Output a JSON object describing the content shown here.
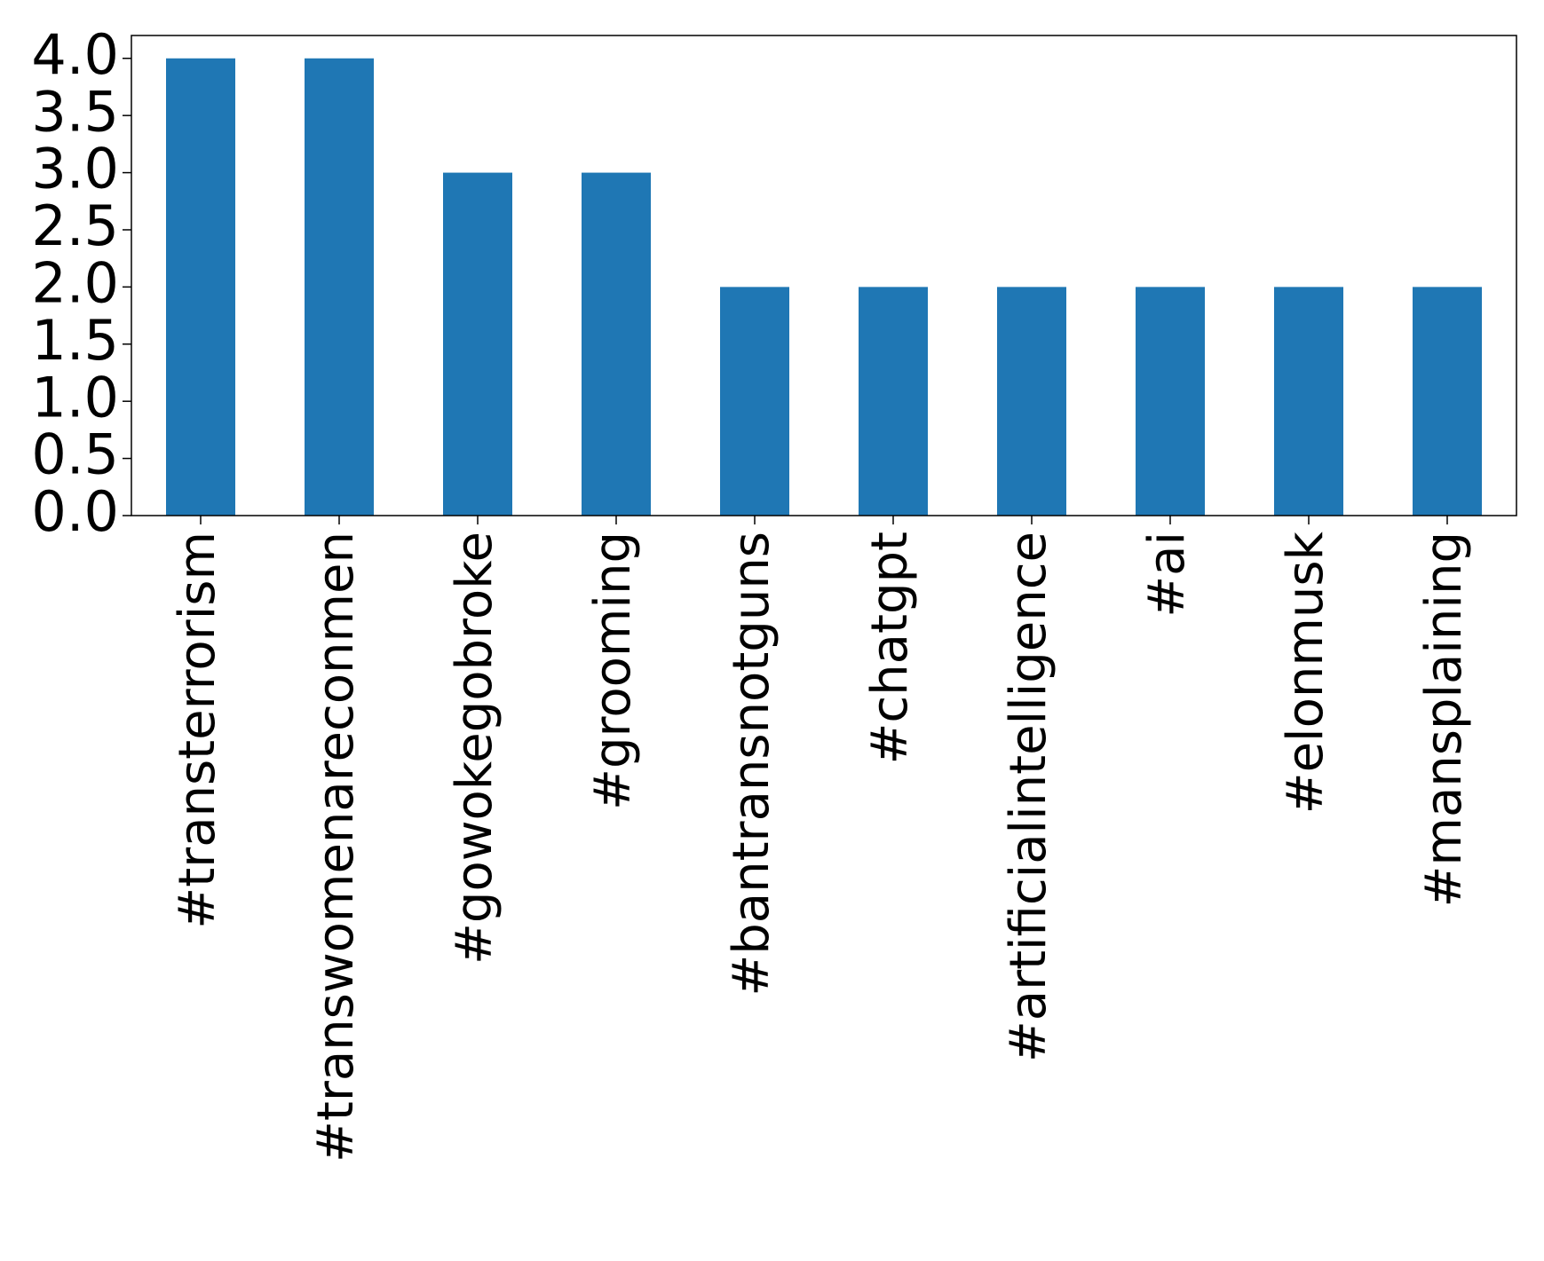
{
  "chart_data": {
    "type": "bar",
    "categories": [
      "#transterrorism",
      "#transwomenareconmen",
      "#gowokegobroke",
      "#grooming",
      "#bantransnotguns",
      "#chatgpt",
      "#artificialintelligence",
      "#ai",
      "#elonmusk",
      "#mansplaining"
    ],
    "values": [
      4,
      4,
      3,
      3,
      2,
      2,
      2,
      2,
      2,
      2
    ],
    "color": "#1f77b4",
    "ylim": [
      0,
      4.2
    ],
    "yticks": [
      {
        "value": 0,
        "label": "0.0"
      },
      {
        "value": 0.5,
        "label": "0.5"
      },
      {
        "value": 1,
        "label": "1.0"
      },
      {
        "value": 1.5,
        "label": "1.5"
      },
      {
        "value": 2,
        "label": "2.0"
      },
      {
        "value": 2.5,
        "label": "2.5"
      },
      {
        "value": 3,
        "label": "3.0"
      },
      {
        "value": 3.5,
        "label": "3.5"
      },
      {
        "value": 4,
        "label": "4.0"
      }
    ],
    "grid": false
  }
}
